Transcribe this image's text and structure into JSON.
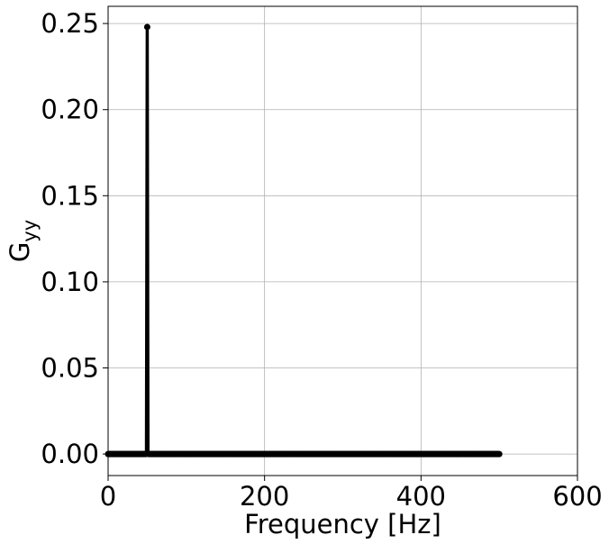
{
  "chart_data": {
    "type": "line",
    "title": "",
    "xlabel": "Frequency [Hz]",
    "ylabel_main": "G",
    "ylabel_subscript": "yy",
    "xlim": [
      0,
      600
    ],
    "ylim": [
      -0.0125,
      0.26
    ],
    "x_ticks": [
      0,
      200,
      400,
      600
    ],
    "x_tick_labels": [
      "0",
      "200",
      "400",
      "600"
    ],
    "y_ticks": [
      0.0,
      0.05,
      0.1,
      0.15,
      0.2,
      0.25
    ],
    "y_tick_labels": [
      "0.00",
      "0.05",
      "0.10",
      "0.15",
      "0.20",
      "0.25"
    ],
    "grid": true,
    "series": [
      {
        "color": "#000000",
        "marker": "circle",
        "x_start": 0,
        "x_end": 500,
        "x_step": 1,
        "baseline": 0.0,
        "peaks": [
          {
            "x": 49,
            "y": 0.0002
          },
          {
            "x": 50,
            "y": 0.248
          },
          {
            "x": 51,
            "y": 0.0002
          }
        ]
      }
    ]
  }
}
